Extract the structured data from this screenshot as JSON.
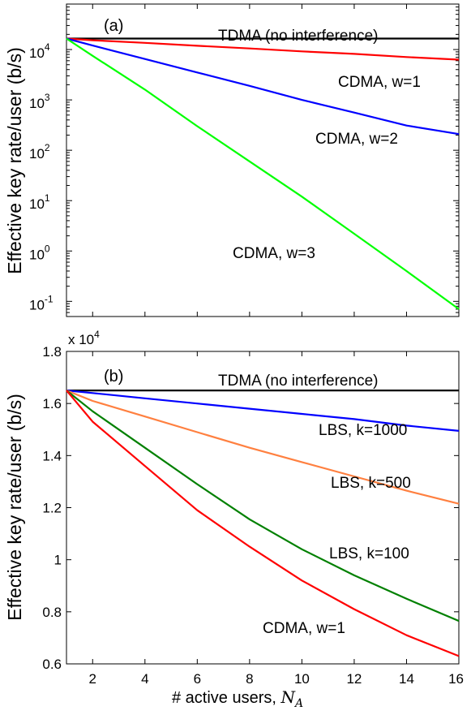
{
  "chart_data": [
    {
      "type": "line",
      "panel_label": "(a)",
      "ylabel": "Effective key rate/user (b/s)",
      "yscale": "log",
      "xlim": [
        1,
        16
      ],
      "ylim": [
        0.05,
        80000
      ],
      "yticks": [
        {
          "value": 0.1,
          "base": "10",
          "exp": "-1"
        },
        {
          "value": 1,
          "base": "10",
          "exp": "0"
        },
        {
          "value": 10,
          "base": "10",
          "exp": "1"
        },
        {
          "value": 100,
          "base": "10",
          "exp": "2"
        },
        {
          "value": 1000,
          "base": "10",
          "exp": "3"
        },
        {
          "value": 10000,
          "base": "10",
          "exp": "4"
        }
      ],
      "grid": false,
      "series": [
        {
          "name": "TDMA (no interference)",
          "color": "#000000",
          "x": [
            1,
            16
          ],
          "y": [
            16500,
            16500
          ]
        },
        {
          "name": "CDMA, w=1",
          "color": "#ff0000",
          "x": [
            1,
            2,
            4,
            6,
            8,
            10,
            12,
            14,
            16
          ],
          "y": [
            16500,
            15300,
            13600,
            11900,
            10500,
            9200,
            8200,
            7100,
            6300
          ]
        },
        {
          "name": "CDMA, w=2",
          "color": "#0000ff",
          "x": [
            1,
            2,
            4,
            6,
            8,
            10,
            12,
            14,
            16
          ],
          "y": [
            16500,
            12000,
            6500,
            3500,
            1900,
            1000,
            560,
            310,
            210
          ]
        },
        {
          "name": "CDMA, w=3",
          "color": "#00ff00",
          "x": [
            1,
            2,
            4,
            6,
            8,
            10,
            12,
            14,
            16
          ],
          "y": [
            16500,
            7500,
            1600,
            300,
            60,
            12,
            2.2,
            0.4,
            0.07
          ]
        }
      ],
      "annotations": [
        {
          "text": "TDMA (no interference)",
          "series": 0
        },
        {
          "text": "CDMA, w=1",
          "series": 1
        },
        {
          "text": "CDMA, w=2",
          "series": 2
        },
        {
          "text": "CDMA, w=3",
          "series": 3
        }
      ]
    },
    {
      "type": "line",
      "panel_label": "(b)",
      "ylabel": "Effective key rate/user (b/s)",
      "xlabel": "# active users, N_A",
      "xlabel_parts": {
        "text": "# active users, ",
        "var": "N",
        "sub": "A"
      },
      "multiplier": {
        "base": "x 10",
        "exp": "4"
      },
      "xlim": [
        1,
        16
      ],
      "ylim": [
        0.6,
        1.8
      ],
      "xticks": [
        "2",
        "4",
        "6",
        "8",
        "10",
        "12",
        "14",
        "16"
      ],
      "yticks": [
        "0.6",
        "0.8",
        "1",
        "1.2",
        "1.4",
        "1.6",
        "1.8"
      ],
      "grid": false,
      "series": [
        {
          "name": "TDMA (no interference)",
          "color": "#000000",
          "x": [
            1,
            16
          ],
          "y": [
            1.65,
            1.65
          ]
        },
        {
          "name": "LBS, k=1000",
          "color": "#0000ff",
          "x": [
            1,
            2,
            4,
            6,
            8,
            10,
            12,
            14,
            16
          ],
          "y": [
            1.65,
            1.64,
            1.62,
            1.6,
            1.58,
            1.56,
            1.54,
            1.515,
            1.495
          ]
        },
        {
          "name": "LBS, k=500",
          "color": "#ff8040",
          "x": [
            1,
            2,
            4,
            6,
            8,
            10,
            12,
            14,
            16
          ],
          "y": [
            1.65,
            1.61,
            1.55,
            1.49,
            1.43,
            1.375,
            1.32,
            1.265,
            1.215
          ]
        },
        {
          "name": "LBS, k=100",
          "color": "#008000",
          "x": [
            1,
            2,
            4,
            6,
            8,
            10,
            12,
            14,
            16
          ],
          "y": [
            1.65,
            1.57,
            1.43,
            1.29,
            1.155,
            1.04,
            0.94,
            0.85,
            0.765
          ]
        },
        {
          "name": "CDMA, w=1",
          "color": "#ff0000",
          "x": [
            1,
            2,
            4,
            6,
            8,
            10,
            12,
            14,
            16
          ],
          "y": [
            1.65,
            1.53,
            1.36,
            1.19,
            1.05,
            0.92,
            0.81,
            0.71,
            0.63
          ]
        }
      ],
      "annotations": [
        {
          "text": "TDMA (no interference)",
          "series": 0
        },
        {
          "text": "LBS, k=1000",
          "series": 1
        },
        {
          "text": "LBS, k=500",
          "series": 2
        },
        {
          "text": "LBS, k=100",
          "series": 3
        },
        {
          "text": "CDMA, w=1",
          "series": 4
        }
      ]
    }
  ]
}
